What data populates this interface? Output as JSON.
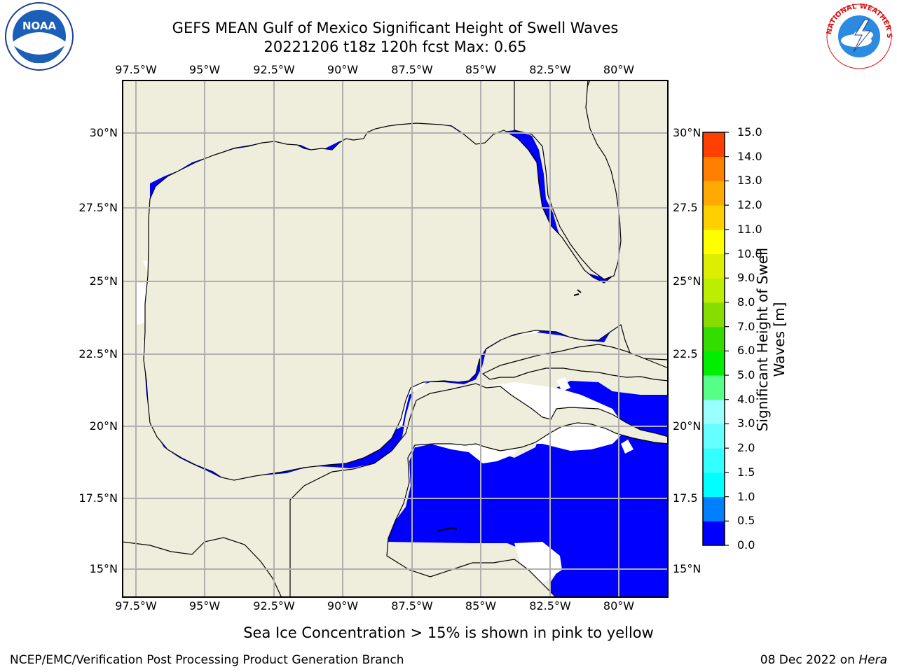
{
  "title": "GEFS MEAN Gulf of Mexico Significant Height of Swell Waves",
  "subtitle": "20221206 t18z 120h fcst   Max: 0.65",
  "lon_labels": [
    "97.5°W",
    "95°W",
    "92.5°W",
    "90°W",
    "87.5°W",
    "85°W",
    "82.5°W",
    "80°W"
  ],
  "lat_labels": [
    "30°N",
    "27.5°N",
    "25°N",
    "22.5°N",
    "20°N",
    "17.5°N",
    "15°N"
  ],
  "lat_labels_right": [
    "30°N",
    "27.5",
    "25°N",
    "22.5",
    "20°N",
    "17.5",
    "15°N"
  ],
  "colorbar": {
    "label_line1": "Significant Height of Swell",
    "label_line2": "Waves [m]",
    "ticks": [
      "0.0",
      "0.5",
      "1.0",
      "1.5",
      "2.0",
      "3.0",
      "4.0",
      "5.0",
      "6.0",
      "7.0",
      "8.0",
      "9.0",
      "10.0",
      "11.0",
      "12.0",
      "13.0",
      "14.0",
      "15.0"
    ],
    "colors": [
      "#0000ff",
      "#0080ff",
      "#00ffff",
      "#33ffff",
      "#66ffff",
      "#99ffff",
      "#55ff88",
      "#00ee00",
      "#33dd00",
      "#88dd00",
      "#bbee00",
      "#ddee00",
      "#ffff00",
      "#ffd000",
      "#ffaa00",
      "#ff8000",
      "#ff4000",
      "#ff0000"
    ]
  },
  "note": "Sea Ice Concentration > 15% is shown in pink to yellow",
  "footer_left": "NCEP/EMC/Verification Post Processing Product Generation Branch",
  "footer_right_prefix": "08 Dec 2022 on ",
  "footer_right_host": "Hera",
  "logos": {
    "left": "noaa-logo",
    "right": "nws-logo",
    "noaa_text": "NOAA",
    "nws_text": "NATIONAL WEATHER SERVICE"
  },
  "colors": {
    "land": "#efeedd",
    "swell_low": "#0000ff",
    "swell_mid": "#1a7fff",
    "no_data": "#ffffff",
    "grid": "#b0b0b0"
  }
}
